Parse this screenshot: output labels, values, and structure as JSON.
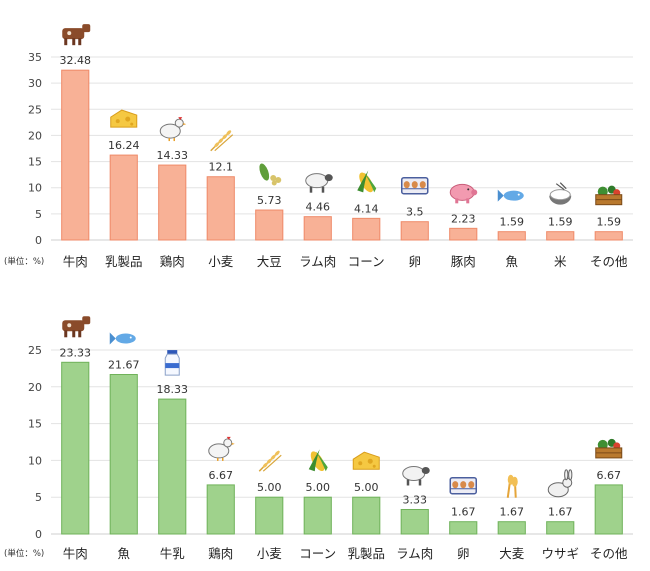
{
  "chart_data": [
    {
      "type": "bar",
      "unit_label": "(単位：%)",
      "categories": [
        "牛肉",
        "乳製品",
        "鶏肉",
        "小麦",
        "大豆",
        "ラム肉",
        "コーン",
        "卵",
        "豚肉",
        "魚",
        "米",
        "その他"
      ],
      "values": [
        32.48,
        16.24,
        14.33,
        12.1,
        5.73,
        4.46,
        4.14,
        3.5,
        2.23,
        1.59,
        1.59,
        1.59
      ],
      "value_labels": [
        "32.48",
        "16.24",
        "14.33",
        "12.1",
        "5.73",
        "4.46",
        "4.14",
        "3.5",
        "2.23",
        "1.59",
        "1.59",
        "1.59"
      ],
      "icons": [
        "cow-icon",
        "cheese-icon",
        "chicken-icon",
        "wheat-icon",
        "soybean-icon",
        "sheep-icon",
        "corn-icon",
        "egg-carton-icon",
        "pig-icon",
        "fish-icon",
        "rice-bowl-icon",
        "vegetable-crate-icon"
      ],
      "ylim": [
        0,
        35
      ],
      "yticks": [
        0,
        5,
        10,
        15,
        20,
        25,
        30,
        35
      ],
      "grid": true,
      "colors": {
        "fill": "#f8b196",
        "stroke": "#ef8a68"
      }
    },
    {
      "type": "bar",
      "unit_label": "(単位：%)",
      "categories": [
        "牛肉",
        "魚",
        "牛乳",
        "鶏肉",
        "小麦",
        "コーン",
        "乳製品",
        "ラム肉",
        "卵",
        "大麦",
        "ウサギ",
        "その他"
      ],
      "values": [
        23.33,
        21.67,
        18.33,
        6.67,
        5.0,
        5.0,
        5.0,
        3.33,
        1.67,
        1.67,
        1.67,
        6.67
      ],
      "value_labels": [
        "23.33",
        "21.67",
        "18.33",
        "6.67",
        "5.00",
        "5.00",
        "5.00",
        "3.33",
        "1.67",
        "1.67",
        "1.67",
        "6.67"
      ],
      "icons": [
        "cow-icon",
        "fish-icon",
        "milk-bottle-icon",
        "chicken-icon",
        "wheat-icon",
        "corn-icon",
        "cheese-icon",
        "sheep-icon",
        "egg-carton-icon",
        "barley-icon",
        "rabbit-icon",
        "vegetable-crate-icon"
      ],
      "ylim": [
        0,
        25
      ],
      "yticks": [
        0,
        5,
        10,
        15,
        20,
        25
      ],
      "grid": true,
      "colors": {
        "fill": "#9fd28c",
        "stroke": "#6fb25a"
      }
    }
  ]
}
